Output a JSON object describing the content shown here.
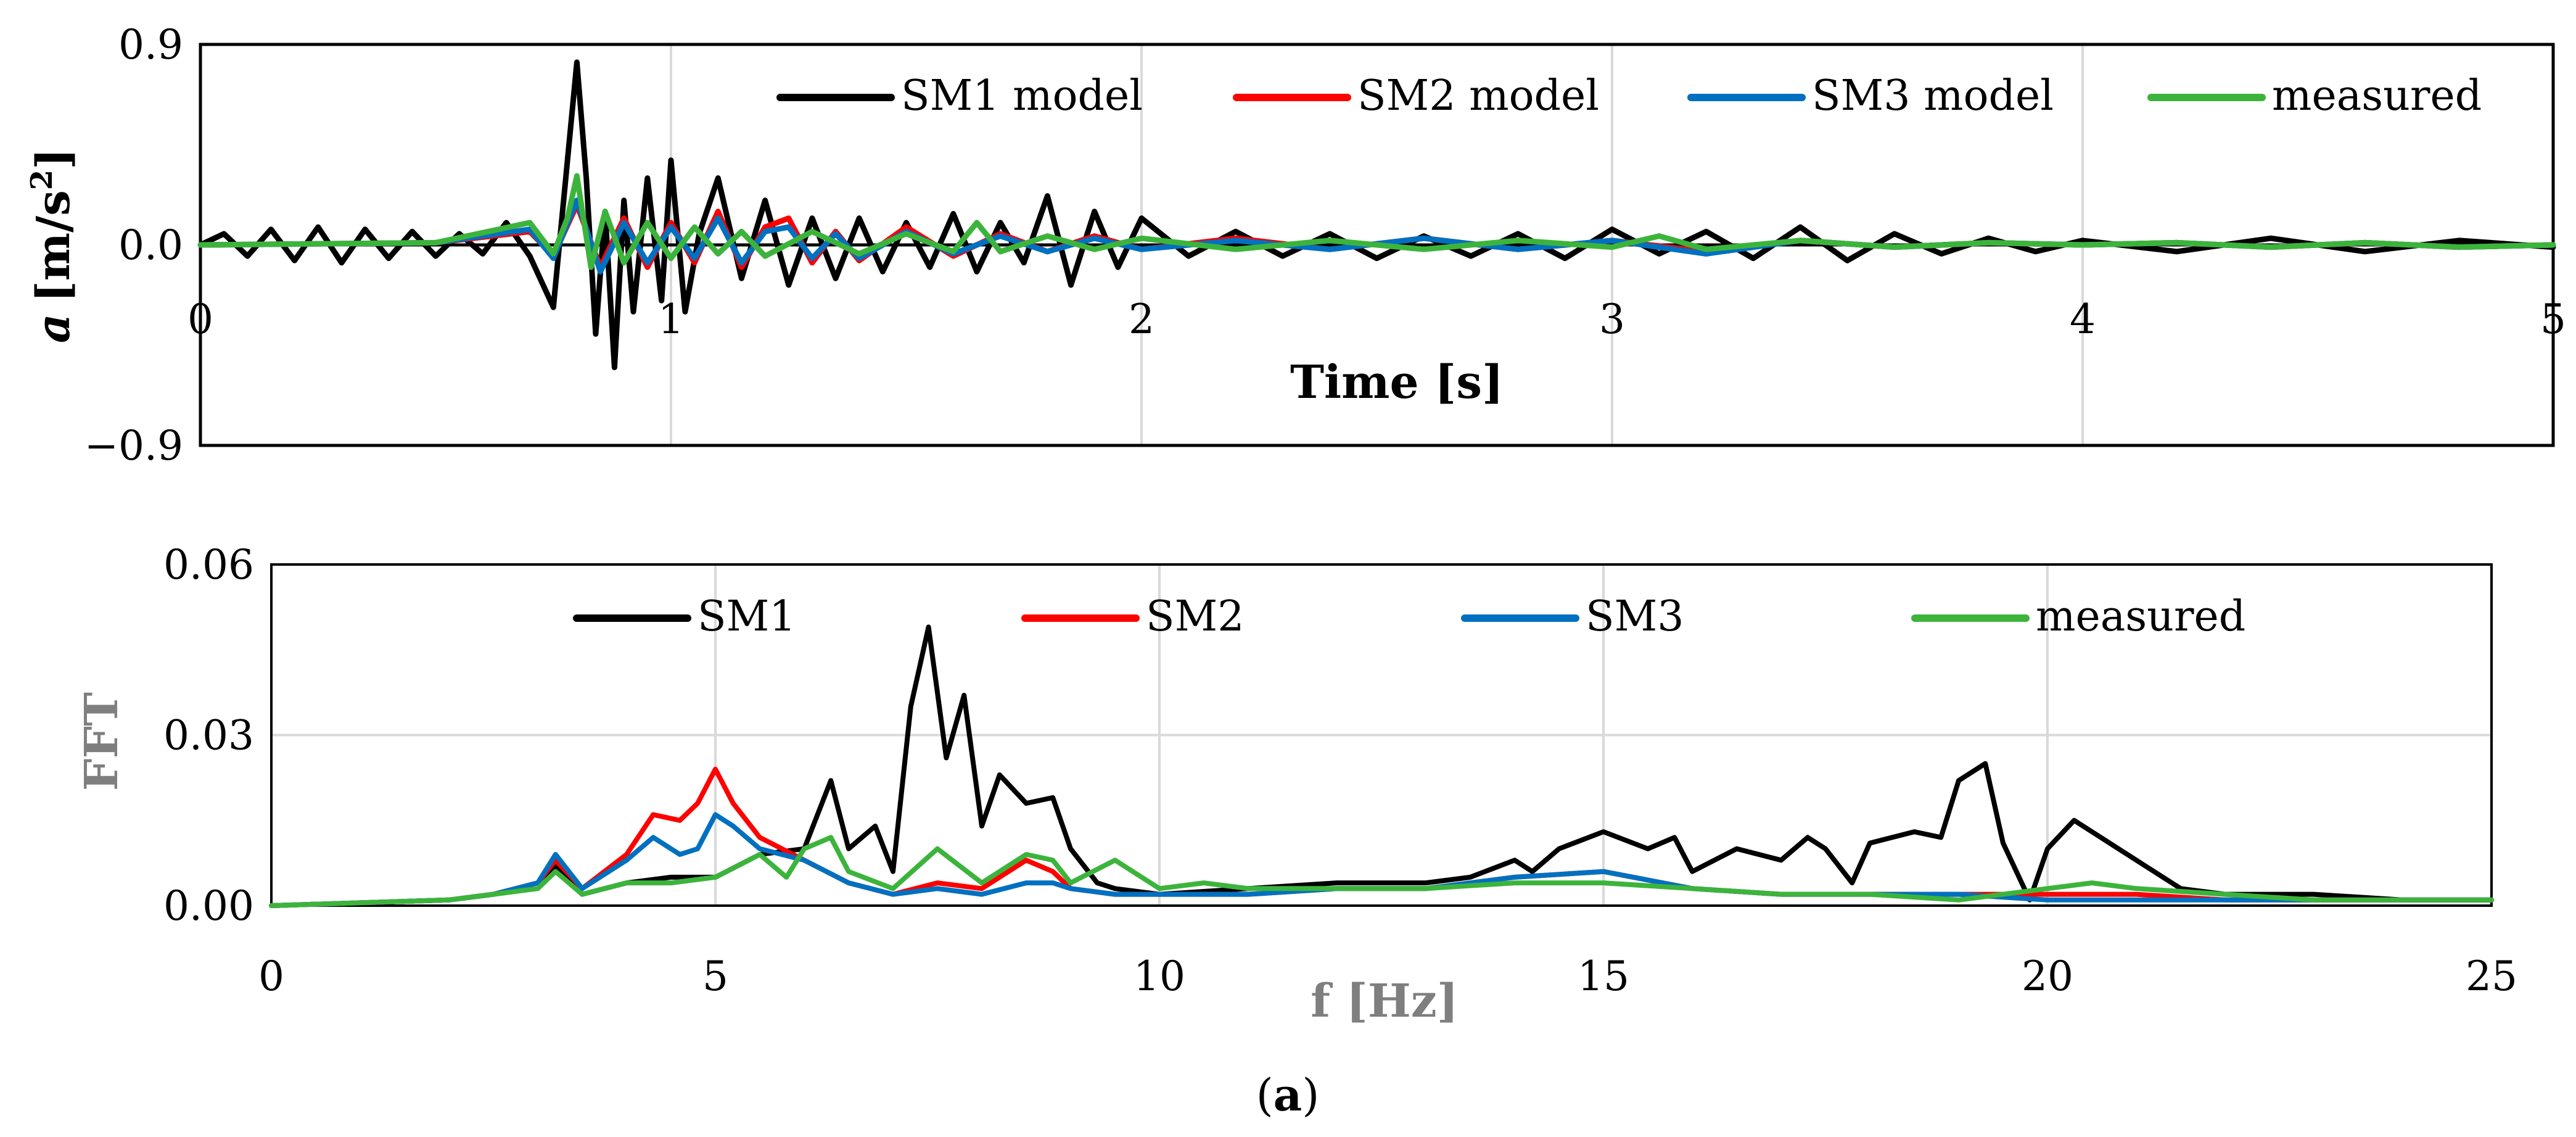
{
  "chart_data": [
    {
      "type": "line",
      "title": "",
      "xlabel": "Time [s]",
      "ylabel_italic": "a",
      "ylabel_unit": "[m/s",
      "ylabel_sup": "2",
      "ylabel_close": "]",
      "xlim": [
        0,
        5
      ],
      "ylim": [
        -0.9,
        0.9
      ],
      "xticks": [
        0,
        1,
        2,
        3,
        4,
        5
      ],
      "x_tick_labels": [
        "0",
        "1",
        "2",
        "3",
        "4",
        "5"
      ],
      "yticks": [
        0.9,
        0.0,
        -0.9
      ],
      "y_tick_labels": [
        "0.9",
        "0.0",
        "−0.9"
      ],
      "grid": "vertical",
      "legend_position": "top-right",
      "series": [
        {
          "name": "SM1 model",
          "color": "#000000",
          "x": [
            0,
            0.05,
            0.1,
            0.15,
            0.2,
            0.25,
            0.3,
            0.35,
            0.4,
            0.45,
            0.5,
            0.55,
            0.6,
            0.65,
            0.7,
            0.75,
            0.8,
            0.82,
            0.84,
            0.86,
            0.88,
            0.9,
            0.92,
            0.95,
            0.98,
            1.0,
            1.03,
            1.06,
            1.1,
            1.15,
            1.2,
            1.25,
            1.3,
            1.35,
            1.4,
            1.45,
            1.5,
            1.55,
            1.6,
            1.65,
            1.7,
            1.75,
            1.8,
            1.85,
            1.9,
            1.95,
            2.0,
            2.1,
            2.2,
            2.3,
            2.4,
            2.5,
            2.6,
            2.7,
            2.8,
            2.9,
            3.0,
            3.1,
            3.2,
            3.3,
            3.4,
            3.5,
            3.6,
            3.7,
            3.8,
            3.9,
            4.0,
            4.2,
            4.4,
            4.6,
            4.8,
            5.0
          ],
          "y": [
            0,
            0.05,
            -0.05,
            0.07,
            -0.07,
            0.08,
            -0.08,
            0.07,
            -0.06,
            0.06,
            -0.05,
            0.05,
            -0.04,
            0.1,
            -0.05,
            -0.28,
            0.82,
            0.3,
            -0.4,
            0.15,
            -0.55,
            0.2,
            -0.3,
            0.3,
            -0.25,
            0.38,
            -0.3,
            0.05,
            0.3,
            -0.15,
            0.2,
            -0.18,
            0.12,
            -0.15,
            0.12,
            -0.12,
            0.1,
            -0.1,
            0.14,
            -0.12,
            0.1,
            -0.08,
            0.22,
            -0.18,
            0.15,
            -0.1,
            0.12,
            -0.05,
            0.06,
            -0.05,
            0.05,
            -0.06,
            0.04,
            -0.05,
            0.05,
            -0.06,
            0.07,
            -0.04,
            0.06,
            -0.06,
            0.08,
            -0.07,
            0.05,
            -0.04,
            0.03,
            -0.03,
            0.02,
            -0.03,
            0.03,
            -0.03,
            0.02,
            -0.01
          ]
        },
        {
          "name": "SM2 model",
          "color": "#ff0000",
          "x": [
            0,
            0.5,
            0.7,
            0.75,
            0.8,
            0.85,
            0.9,
            0.95,
            1.0,
            1.05,
            1.1,
            1.15,
            1.2,
            1.25,
            1.3,
            1.35,
            1.4,
            1.5,
            1.6,
            1.7,
            1.8,
            1.9,
            2.0,
            2.2,
            2.4,
            2.6,
            2.8,
            3.0,
            3.2,
            3.4,
            3.6,
            3.8,
            4.0,
            4.2,
            4.4,
            4.6,
            4.8,
            5.0
          ],
          "y": [
            0,
            0.01,
            0.06,
            -0.05,
            0.18,
            -0.1,
            0.12,
            -0.1,
            0.1,
            -0.08,
            0.15,
            -0.1,
            0.08,
            0.12,
            -0.08,
            0.06,
            -0.07,
            0.08,
            -0.05,
            0.05,
            -0.03,
            0.04,
            -0.02,
            0.03,
            -0.02,
            0.03,
            -0.02,
            0.02,
            -0.03,
            0.02,
            -0.01,
            0.01,
            0.0,
            0.01,
            -0.01,
            0.01,
            -0.01,
            0.0
          ]
        },
        {
          "name": "SM3 model",
          "color": "#0070c0",
          "x": [
            0,
            0.5,
            0.7,
            0.75,
            0.8,
            0.85,
            0.9,
            0.95,
            1.0,
            1.05,
            1.1,
            1.15,
            1.2,
            1.25,
            1.3,
            1.35,
            1.4,
            1.5,
            1.6,
            1.7,
            1.8,
            1.9,
            2.0,
            2.2,
            2.4,
            2.6,
            2.8,
            3.0,
            3.2,
            3.4,
            3.6,
            3.8,
            4.0,
            4.2,
            4.4,
            4.6,
            4.8,
            5.0
          ],
          "y": [
            0,
            0.01,
            0.07,
            -0.06,
            0.2,
            -0.12,
            0.1,
            -0.08,
            0.08,
            -0.06,
            0.12,
            -0.08,
            0.06,
            0.08,
            -0.06,
            0.05,
            -0.06,
            0.06,
            -0.04,
            0.04,
            -0.03,
            0.03,
            -0.02,
            0.02,
            -0.02,
            0.03,
            -0.02,
            0.02,
            -0.04,
            0.02,
            -0.01,
            0.01,
            0.0,
            0.01,
            -0.01,
            0.01,
            -0.01,
            0.0
          ]
        },
        {
          "name": "measured",
          "color": "#3cb43c",
          "x": [
            0,
            0.5,
            0.7,
            0.75,
            0.78,
            0.8,
            0.83,
            0.86,
            0.9,
            0.95,
            1.0,
            1.05,
            1.1,
            1.15,
            1.2,
            1.3,
            1.4,
            1.5,
            1.6,
            1.65,
            1.7,
            1.8,
            1.9,
            2.0,
            2.2,
            2.4,
            2.6,
            2.8,
            3.0,
            3.1,
            3.2,
            3.4,
            3.6,
            3.8,
            4.0,
            4.2,
            4.4,
            4.6,
            4.8,
            5.0
          ],
          "y": [
            0,
            0.01,
            0.1,
            -0.04,
            0.12,
            0.31,
            -0.1,
            0.15,
            -0.08,
            0.1,
            -0.06,
            0.08,
            -0.04,
            0.06,
            -0.05,
            0.06,
            -0.04,
            0.05,
            -0.03,
            0.1,
            -0.03,
            0.04,
            -0.02,
            0.03,
            -0.02,
            0.02,
            -0.02,
            0.02,
            -0.01,
            0.04,
            -0.02,
            0.02,
            -0.01,
            0.01,
            0.0,
            0.01,
            -0.01,
            0.01,
            -0.01,
            0.0
          ]
        }
      ]
    },
    {
      "type": "line",
      "title": "",
      "xlabel": "f [Hz]",
      "ylabel": "FFT",
      "xlim": [
        0,
        25
      ],
      "ylim": [
        0,
        0.06
      ],
      "xticks": [
        0,
        5,
        10,
        15,
        20,
        25
      ],
      "x_tick_labels": [
        "0",
        "5",
        "10",
        "15",
        "20",
        "25"
      ],
      "yticks": [
        0.06,
        0.03,
        0.0
      ],
      "y_tick_labels": [
        "0.06",
        "0.03",
        "0.00"
      ],
      "grid": "both",
      "legend_position": "top",
      "series": [
        {
          "name": "SM1",
          "color": "#000000",
          "x": [
            0,
            1,
            2,
            2.5,
            3,
            3.2,
            3.5,
            4,
            4.5,
            5,
            5.5,
            6,
            6.3,
            6.5,
            6.8,
            7,
            7.2,
            7.4,
            7.6,
            7.8,
            8,
            8.2,
            8.5,
            8.8,
            9,
            9.3,
            9.5,
            10,
            11,
            12,
            13,
            13.5,
            14,
            14.2,
            14.5,
            15,
            15.5,
            15.8,
            16,
            16.5,
            17,
            17.3,
            17.5,
            17.8,
            18,
            18.5,
            18.8,
            19,
            19.3,
            19.5,
            19.8,
            20,
            20.3,
            20.6,
            21,
            21.5,
            22,
            23,
            24,
            25
          ],
          "y": [
            0,
            0.0005,
            0.001,
            0.002,
            0.004,
            0.007,
            0.002,
            0.004,
            0.005,
            0.005,
            0.009,
            0.01,
            0.022,
            0.01,
            0.014,
            0.006,
            0.035,
            0.049,
            0.026,
            0.037,
            0.014,
            0.023,
            0.018,
            0.019,
            0.01,
            0.004,
            0.003,
            0.002,
            0.003,
            0.004,
            0.004,
            0.005,
            0.008,
            0.006,
            0.01,
            0.013,
            0.01,
            0.012,
            0.006,
            0.01,
            0.008,
            0.012,
            0.01,
            0.004,
            0.011,
            0.013,
            0.012,
            0.022,
            0.025,
            0.011,
            0.001,
            0.01,
            0.015,
            0.012,
            0.008,
            0.003,
            0.002,
            0.002,
            0.001,
            0.001
          ]
        },
        {
          "name": "SM2",
          "color": "#ff0000",
          "x": [
            0,
            1,
            2,
            2.5,
            3,
            3.2,
            3.5,
            4,
            4.3,
            4.6,
            4.8,
            5,
            5.2,
            5.5,
            6,
            6.5,
            7,
            7.5,
            8,
            8.5,
            8.8,
            9,
            9.5,
            10,
            11,
            12,
            13,
            14,
            15,
            16,
            17,
            18,
            19,
            20,
            21,
            22,
            23,
            24,
            25
          ],
          "y": [
            0,
            0.0005,
            0.001,
            0.002,
            0.004,
            0.008,
            0.003,
            0.009,
            0.016,
            0.015,
            0.018,
            0.024,
            0.018,
            0.012,
            0.008,
            0.004,
            0.002,
            0.004,
            0.003,
            0.008,
            0.006,
            0.003,
            0.002,
            0.002,
            0.002,
            0.003,
            0.003,
            0.005,
            0.006,
            0.003,
            0.002,
            0.002,
            0.002,
            0.002,
            0.002,
            0.001,
            0.001,
            0.001,
            0.001
          ]
        },
        {
          "name": "SM3",
          "color": "#0070c0",
          "x": [
            0,
            1,
            2,
            2.5,
            3,
            3.2,
            3.5,
            4,
            4.3,
            4.6,
            4.8,
            5,
            5.2,
            5.5,
            6,
            6.5,
            7,
            7.5,
            8,
            8.5,
            8.8,
            9,
            9.5,
            10,
            11,
            12,
            13,
            14,
            15,
            16,
            17,
            18,
            19,
            20,
            21,
            22,
            23,
            24,
            25
          ],
          "y": [
            0,
            0.0005,
            0.001,
            0.002,
            0.004,
            0.009,
            0.003,
            0.008,
            0.012,
            0.009,
            0.01,
            0.016,
            0.014,
            0.01,
            0.008,
            0.004,
            0.002,
            0.003,
            0.002,
            0.004,
            0.004,
            0.003,
            0.002,
            0.002,
            0.002,
            0.003,
            0.003,
            0.005,
            0.006,
            0.003,
            0.002,
            0.002,
            0.002,
            0.001,
            0.001,
            0.001,
            0.001,
            0.001,
            0.001
          ]
        },
        {
          "name": "measured",
          "color": "#3cb43c",
          "x": [
            0,
            1,
            2,
            2.5,
            3,
            3.2,
            3.5,
            4,
            4.5,
            5,
            5.5,
            5.8,
            6,
            6.3,
            6.5,
            7,
            7.5,
            8,
            8.5,
            8.8,
            9,
            9.5,
            10,
            10.5,
            11,
            12,
            13,
            14,
            15,
            16,
            17,
            18,
            19,
            20,
            20.5,
            21,
            22,
            23,
            24,
            25
          ],
          "y": [
            0,
            0.0005,
            0.001,
            0.002,
            0.003,
            0.006,
            0.002,
            0.004,
            0.004,
            0.005,
            0.009,
            0.005,
            0.01,
            0.012,
            0.006,
            0.003,
            0.01,
            0.004,
            0.009,
            0.008,
            0.004,
            0.008,
            0.003,
            0.004,
            0.003,
            0.003,
            0.003,
            0.004,
            0.004,
            0.003,
            0.002,
            0.002,
            0.001,
            0.003,
            0.004,
            0.003,
            0.002,
            0.001,
            0.001,
            0.001
          ]
        }
      ]
    }
  ],
  "caption": {
    "open": "(",
    "letter": "a",
    "close": ")"
  }
}
